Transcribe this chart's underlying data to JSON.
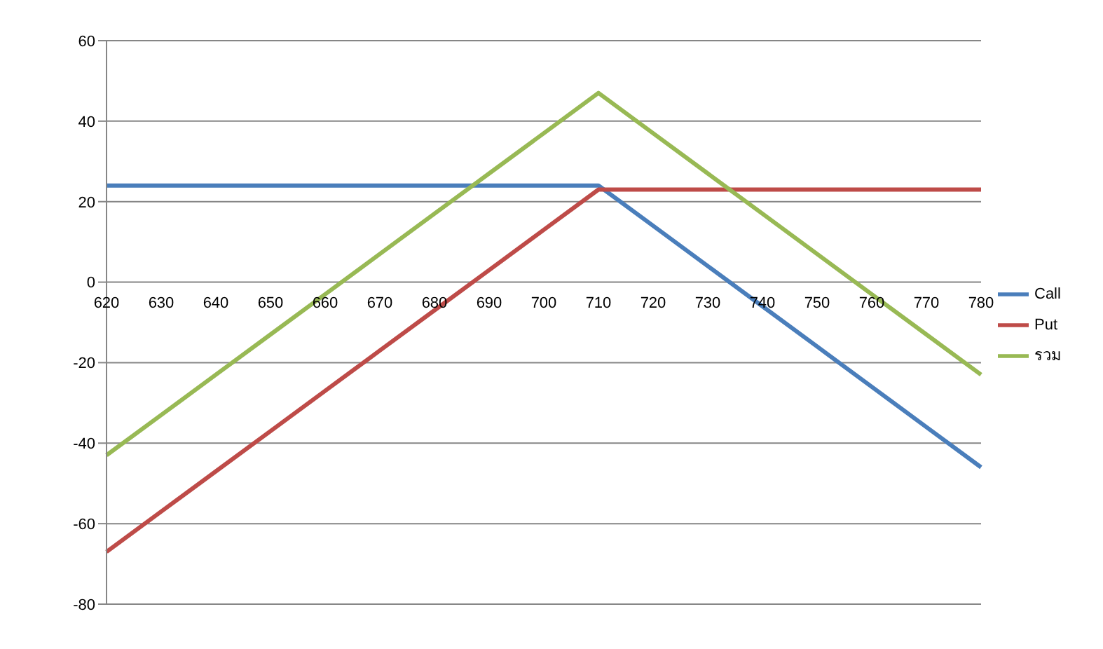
{
  "chart_data": {
    "type": "line",
    "categories": [
      "620",
      "630",
      "640",
      "650",
      "660",
      "670",
      "680",
      "690",
      "700",
      "710",
      "720",
      "730",
      "740",
      "750",
      "760",
      "770",
      "780"
    ],
    "series": [
      {
        "name": "Call",
        "color": "#4a7ebb",
        "values": [
          24,
          24,
          24,
          24,
          24,
          24,
          24,
          24,
          24,
          24,
          14,
          4,
          -6,
          -16,
          -26,
          -36,
          -46
        ]
      },
      {
        "name": "Put",
        "color": "#be4b48",
        "values": [
          -67,
          -57,
          -47,
          -37,
          -27,
          -17,
          -7,
          3,
          13,
          23,
          23,
          23,
          23,
          23,
          23,
          23,
          23
        ]
      },
      {
        "name": "รวม",
        "color": "#98b954",
        "values": [
          -43,
          -33,
          -23,
          -13,
          -3,
          7,
          17,
          27,
          37,
          47,
          37,
          27,
          17,
          7,
          -3,
          -13,
          -23
        ]
      }
    ],
    "ylim": [
      -80,
      60
    ],
    "yticks": [
      -80,
      -60,
      -40,
      -20,
      0,
      20,
      40,
      60
    ],
    "grid": "y",
    "legend": "right",
    "marker": "none",
    "line_style": "solid"
  }
}
